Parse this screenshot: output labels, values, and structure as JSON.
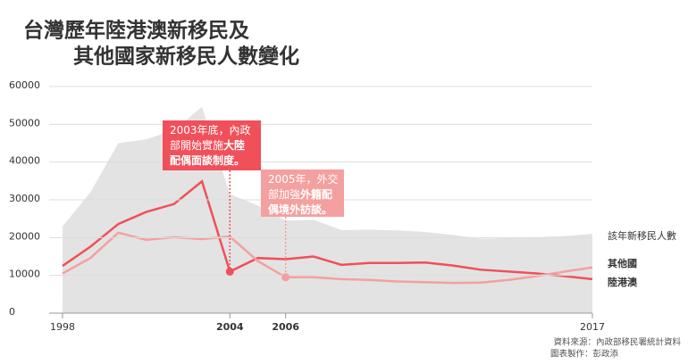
{
  "chart_data": {
    "type": "line",
    "title": "台灣歷年陸港澳新移民及",
    "subtitle": "其他國家新移民人數變化",
    "title_color": "#f0505a",
    "subtitle_color": "#f4a0a0",
    "x": [
      1998,
      1999,
      2000,
      2001,
      2002,
      2003,
      2004,
      2005,
      2006,
      2007,
      2008,
      2009,
      2010,
      2011,
      2012,
      2013,
      2014,
      2015,
      2016,
      2017
    ],
    "series": [
      {
        "name": "該年新移民人數",
        "color": "#e3e3e3",
        "label_color": "#555",
        "kind": "area",
        "values": [
          23000,
          32000,
          45000,
          46000,
          48500,
          54600,
          31500,
          28500,
          24500,
          24700,
          22000,
          22100,
          21900,
          21500,
          20700,
          19700,
          19900,
          20100,
          20400,
          21000
        ]
      },
      {
        "name": "陸港澳",
        "color": "#f0505a",
        "label_color": "#f0505a",
        "kind": "line",
        "values": [
          12500,
          17600,
          23600,
          26800,
          28900,
          34900,
          11000,
          14600,
          14300,
          15000,
          12800,
          13300,
          13300,
          13400,
          12600,
          11500,
          11000,
          10500,
          9800,
          9000
        ]
      },
      {
        "name": "其他國",
        "color": "#f4a0a0",
        "label_color": "#f4a0a0",
        "kind": "line",
        "values": [
          10500,
          14600,
          21300,
          19400,
          20100,
          19600,
          20300,
          13800,
          9500,
          9500,
          9000,
          8800,
          8400,
          8200,
          8000,
          8100,
          8800,
          9800,
          11000,
          12100
        ]
      }
    ],
    "xlim": [
      1998,
      2017
    ],
    "xticks": [
      1998,
      2004,
      2006,
      2017
    ],
    "xtick_colors": [
      "#333",
      "#f0505a",
      "#f4a0a0",
      "#333"
    ],
    "ylim": [
      0,
      60000
    ],
    "yticks": [
      0,
      10000,
      20000,
      30000,
      40000,
      50000,
      60000
    ],
    "grid": true,
    "annotations": [
      {
        "x": 2004,
        "color": "#f0505a",
        "lines": [
          [
            {
              "text": "2003年底，內政",
              "bold": false
            }
          ],
          [
            {
              "text": "部開始實施",
              "bold": false
            },
            {
              "text": "大陸",
              "bold": true
            }
          ],
          [
            {
              "text": "配偶面談制度。",
              "bold": true
            }
          ]
        ]
      },
      {
        "x": 2006,
        "color": "#f4a0a0",
        "lines": [
          [
            {
              "text": "2005年，外交",
              "bold": false
            }
          ],
          [
            {
              "text": "部加強",
              "bold": false
            },
            {
              "text": "外籍配",
              "bold": true
            }
          ],
          [
            {
              "text": "偶境外訪談。",
              "bold": true
            }
          ]
        ]
      }
    ],
    "source": [
      "資料來源：內政部移民署統計資料",
      "圖表製作：彭政添"
    ]
  }
}
